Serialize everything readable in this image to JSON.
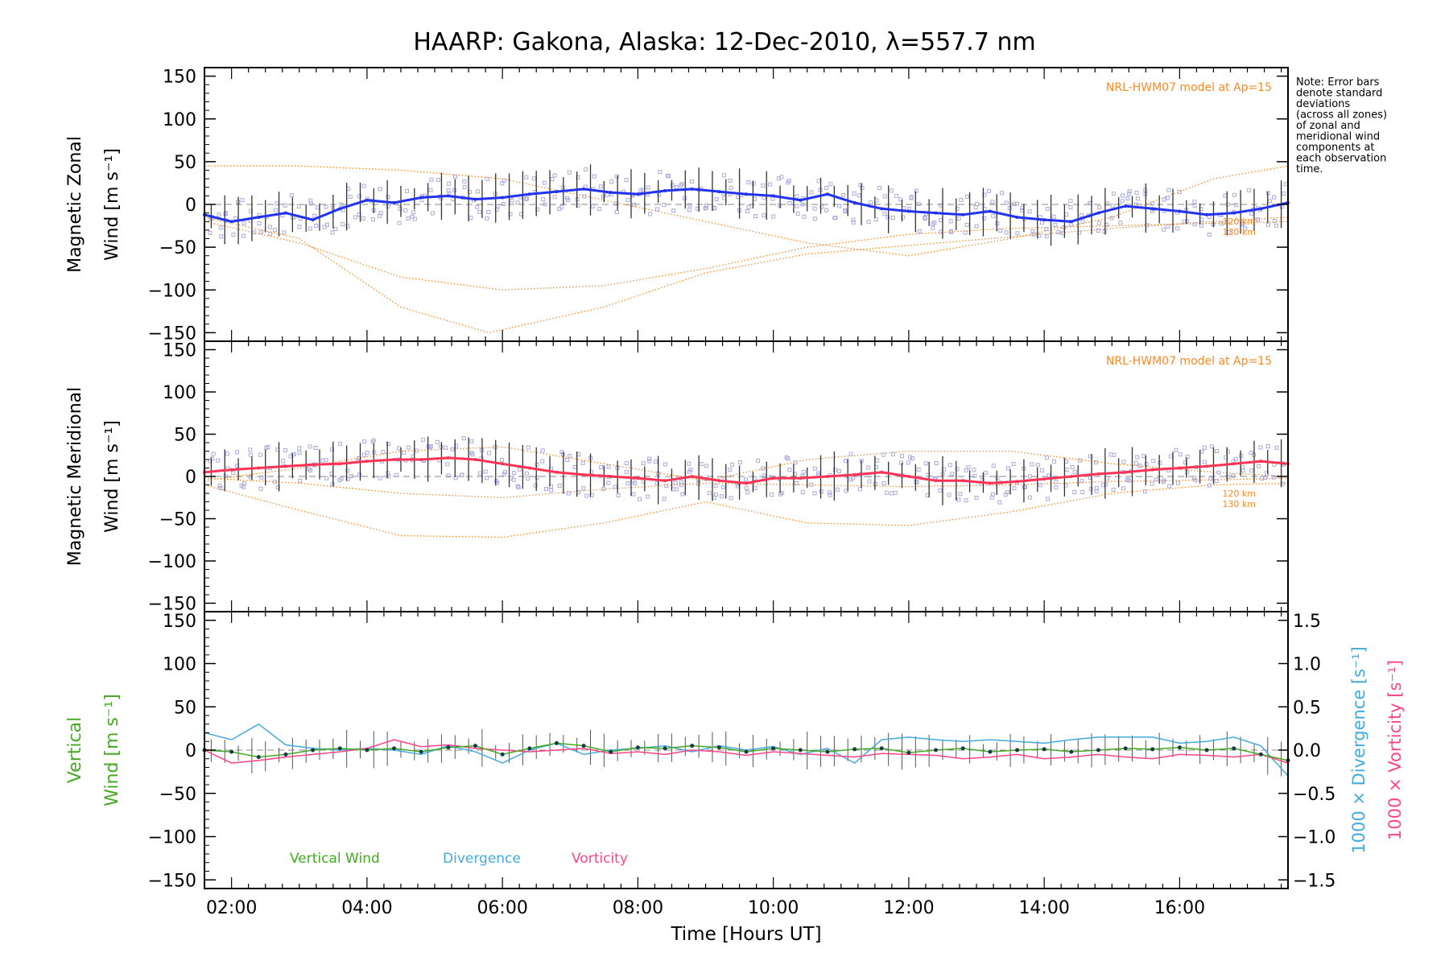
{
  "title": "HAARP: Gakona,  Alaska: 12-Dec-2010, λ=557.7 nm",
  "note": [
    "Note: Error bars",
    "denote standard",
    "deviations",
    "(across all zones)",
    "of zonal and",
    "meridional wind",
    "components at",
    "each observation",
    "time."
  ],
  "colors": {
    "zonal": "#2233ee",
    "meridional": "#ff3355",
    "model": "#ff8822",
    "vertical": "#44aa22",
    "divergence": "#44aadd",
    "vorticity": "#ff4488",
    "scatter": "#aaaadd",
    "errorbar": "#333333"
  },
  "chart_data": [
    {
      "type": "line",
      "panel": "zonal",
      "ylabel_lines": [
        "Magnetic Zonal",
        "Wind [m s⁻¹]"
      ],
      "annotation": "NRL-HWM07 model at Ap=15",
      "model_labels": [
        "120 km",
        "130 km"
      ],
      "xlim": [
        1.6,
        17.6
      ],
      "ylim": [
        -160,
        160
      ],
      "yticks": [
        150,
        100,
        50,
        0,
        -50,
        -100,
        -150
      ],
      "series": [
        {
          "role": "measured",
          "x": [
            1.6,
            2.0,
            2.4,
            2.8,
            3.2,
            3.6,
            4.0,
            4.4,
            4.8,
            5.2,
            5.6,
            6.0,
            6.4,
            6.8,
            7.2,
            7.6,
            8.0,
            8.4,
            8.8,
            9.2,
            9.6,
            10.0,
            10.4,
            10.8,
            11.2,
            11.6,
            12.0,
            12.4,
            12.8,
            13.2,
            13.6,
            14.0,
            14.4,
            14.8,
            15.2,
            15.6,
            16.0,
            16.4,
            16.8,
            17.2,
            17.6
          ],
          "y": [
            -12,
            -20,
            -15,
            -10,
            -18,
            -5,
            5,
            2,
            8,
            10,
            6,
            8,
            12,
            15,
            18,
            14,
            12,
            16,
            18,
            15,
            12,
            10,
            5,
            12,
            2,
            -5,
            -8,
            -10,
            -12,
            -8,
            -15,
            -18,
            -20,
            -10,
            -2,
            -5,
            -8,
            -12,
            -10,
            -5,
            2
          ]
        },
        {
          "role": "model",
          "x": [
            1.6,
            3.0,
            4.5,
            6.0,
            7.5,
            9.0,
            10.5,
            12.0,
            13.5,
            15.0,
            16.5,
            17.6
          ],
          "y": [
            45,
            45,
            40,
            30,
            5,
            -20,
            -45,
            -60,
            -40,
            -15,
            30,
            45
          ]
        },
        {
          "role": "model",
          "x": [
            1.6,
            3.0,
            4.5,
            5.8,
            7.5,
            9.0,
            10.5,
            12.0,
            13.5,
            15.0,
            16.5,
            17.6
          ],
          "y": [
            -15,
            -40,
            -120,
            -150,
            -120,
            -80,
            -58,
            -48,
            -38,
            -28,
            -20,
            -15
          ]
        },
        {
          "role": "model",
          "x": [
            1.6,
            3.0,
            4.5,
            6.0,
            7.5,
            9.0,
            10.5,
            12.0,
            13.5,
            15.0,
            16.5,
            17.6
          ],
          "y": [
            -20,
            -45,
            -85,
            -100,
            -95,
            -75,
            -50,
            -35,
            -28,
            -25,
            -22,
            -20
          ]
        }
      ]
    },
    {
      "type": "line",
      "panel": "meridional",
      "ylabel_lines": [
        "Magnetic Meridional",
        "Wind [m s⁻¹]"
      ],
      "annotation": "NRL-HWM07 model at Ap=15",
      "model_labels": [
        "120 km",
        "130 km"
      ],
      "xlim": [
        1.6,
        17.6
      ],
      "ylim": [
        -160,
        160
      ],
      "yticks": [
        150,
        100,
        50,
        0,
        -50,
        -100,
        -150
      ],
      "series": [
        {
          "role": "measured",
          "x": [
            1.6,
            2.0,
            2.4,
            2.8,
            3.2,
            3.6,
            4.0,
            4.4,
            4.8,
            5.2,
            5.6,
            6.0,
            6.4,
            6.8,
            7.2,
            7.6,
            8.0,
            8.4,
            8.8,
            9.2,
            9.6,
            10.0,
            10.4,
            10.8,
            11.2,
            11.6,
            12.0,
            12.4,
            12.8,
            13.2,
            13.6,
            14.0,
            14.4,
            14.8,
            15.2,
            15.6,
            16.0,
            16.4,
            16.8,
            17.2,
            17.6
          ],
          "y": [
            5,
            8,
            10,
            12,
            14,
            15,
            18,
            20,
            20,
            22,
            20,
            15,
            10,
            5,
            2,
            0,
            -2,
            -5,
            0,
            -5,
            -8,
            -2,
            -2,
            0,
            2,
            5,
            0,
            -5,
            -5,
            -8,
            -6,
            -3,
            0,
            3,
            5,
            8,
            10,
            12,
            15,
            18,
            15
          ]
        },
        {
          "role": "model",
          "x": [
            1.6,
            3.0,
            4.5,
            6.0,
            7.5,
            9.0,
            10.5,
            12.0,
            13.5,
            15.0,
            16.5,
            17.6
          ],
          "y": [
            -10,
            -40,
            -70,
            -72,
            -55,
            -30,
            -55,
            -58,
            -42,
            -20,
            -10,
            -8
          ]
        },
        {
          "role": "model",
          "x": [
            1.6,
            3.0,
            4.5,
            6.0,
            7.5,
            9.0,
            10.5,
            12.0,
            13.5,
            15.0,
            16.5,
            17.6
          ],
          "y": [
            -5,
            10,
            30,
            35,
            15,
            -5,
            20,
            30,
            30,
            15,
            5,
            0
          ]
        },
        {
          "role": "model",
          "x": [
            1.6,
            3.0,
            4.5,
            6.0,
            7.5,
            9.0,
            10.5,
            12.0,
            13.5,
            15.0,
            16.5,
            17.6
          ],
          "y": [
            -2,
            -8,
            -20,
            -25,
            -15,
            -8,
            -10,
            -12,
            -10,
            -6,
            -4,
            -2
          ]
        }
      ]
    },
    {
      "type": "line",
      "panel": "vertical",
      "ylabel_lines": [
        "Vertical",
        "Wind [m s⁻¹]"
      ],
      "y2label_lines": [
        "1000 × Divergence [s⁻¹]",
        "1000 × Vorticity [s⁻¹]"
      ],
      "xlim": [
        1.6,
        17.6
      ],
      "ylim": [
        -160,
        160
      ],
      "yticks": [
        150,
        100,
        50,
        0,
        -50,
        -100,
        -150
      ],
      "y2lim": [
        -1.6,
        1.6
      ],
      "y2ticks": [
        "1.5",
        "1.0",
        "0.5",
        "0.0",
        "−0.5",
        "−1.0",
        "−1.5"
      ],
      "xlabel": "Time [Hours UT]",
      "xticks": [
        "02:00",
        "04:00",
        "06:00",
        "08:00",
        "10:00",
        "12:00",
        "14:00",
        "16:00"
      ],
      "legend": [
        "Vertical Wind",
        "Divergence",
        "Vorticity"
      ],
      "series": [
        {
          "name": "Vertical Wind",
          "x": [
            1.6,
            2.0,
            2.4,
            2.8,
            3.2,
            3.6,
            4.0,
            4.4,
            4.8,
            5.2,
            5.6,
            6.0,
            6.4,
            6.8,
            7.2,
            7.6,
            8.0,
            8.4,
            8.8,
            9.2,
            9.6,
            10.0,
            10.4,
            10.8,
            11.2,
            11.6,
            12.0,
            12.4,
            12.8,
            13.2,
            13.6,
            14.0,
            14.4,
            14.8,
            15.2,
            15.6,
            16.0,
            16.4,
            16.8,
            17.2,
            17.6
          ],
          "y": [
            0,
            -2,
            -8,
            -5,
            0,
            2,
            0,
            2,
            -2,
            3,
            5,
            -5,
            2,
            8,
            5,
            -2,
            3,
            2,
            5,
            3,
            -2,
            2,
            0,
            -2,
            1,
            2,
            -3,
            0,
            2,
            -2,
            0,
            1,
            -2,
            0,
            2,
            1,
            3,
            0,
            2,
            -5,
            -12
          ]
        },
        {
          "name": "Divergence",
          "axis": "right",
          "x": [
            1.6,
            2.0,
            2.4,
            2.8,
            3.2,
            3.6,
            4.0,
            4.4,
            4.8,
            5.2,
            5.6,
            6.0,
            6.4,
            6.8,
            7.2,
            7.6,
            8.0,
            8.4,
            8.8,
            9.2,
            9.6,
            10.0,
            10.4,
            10.8,
            11.2,
            11.6,
            12.0,
            12.4,
            12.8,
            13.2,
            13.6,
            14.0,
            14.4,
            14.8,
            15.2,
            15.6,
            16.0,
            16.4,
            16.8,
            17.2,
            17.6
          ],
          "y": [
            0.2,
            0.12,
            0.3,
            0.06,
            0.02,
            0.0,
            0.02,
            0.0,
            -0.05,
            0.05,
            -0.02,
            -0.15,
            0.0,
            0.08,
            -0.05,
            0.0,
            0.02,
            0.05,
            -0.02,
            0.05,
            0.0,
            0.04,
            -0.05,
            0.02,
            -0.15,
            0.12,
            0.15,
            0.12,
            0.1,
            0.12,
            0.1,
            0.08,
            0.12,
            0.15,
            0.15,
            0.15,
            0.08,
            0.1,
            0.15,
            0.05,
            -0.3
          ]
        },
        {
          "name": "Vorticity",
          "axis": "right",
          "x": [
            1.6,
            2.0,
            2.4,
            2.8,
            3.2,
            3.6,
            4.0,
            4.4,
            4.8,
            5.2,
            5.6,
            6.0,
            6.4,
            6.8,
            7.2,
            7.6,
            8.0,
            8.4,
            8.8,
            9.2,
            9.6,
            10.0,
            10.4,
            10.8,
            11.2,
            11.6,
            12.0,
            12.4,
            12.8,
            13.2,
            13.6,
            14.0,
            14.4,
            14.8,
            15.2,
            15.6,
            16.0,
            16.4,
            16.8,
            17.2,
            17.6
          ],
          "y": [
            0.0,
            -0.15,
            -0.12,
            -0.08,
            -0.05,
            -0.02,
            0.02,
            0.12,
            0.04,
            0.06,
            0.02,
            0.0,
            -0.02,
            0.0,
            0.02,
            -0.04,
            -0.02,
            -0.05,
            0.0,
            -0.02,
            -0.06,
            -0.02,
            -0.04,
            -0.06,
            -0.08,
            -0.04,
            -0.05,
            -0.06,
            -0.1,
            -0.08,
            -0.05,
            -0.1,
            -0.08,
            -0.05,
            -0.08,
            -0.1,
            -0.05,
            -0.06,
            -0.08,
            -0.05,
            -0.15
          ]
        }
      ]
    }
  ]
}
